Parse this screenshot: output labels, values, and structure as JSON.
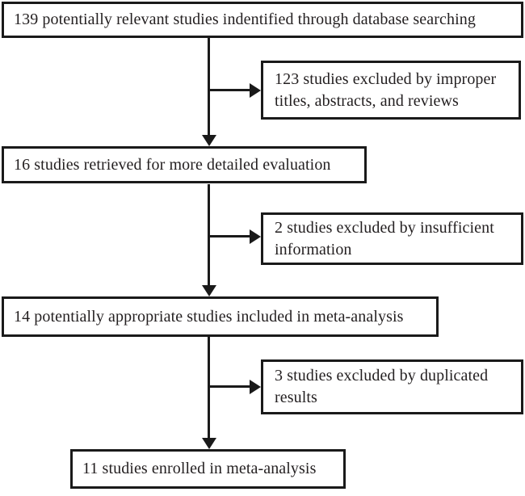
{
  "diagram": {
    "type": "flowchart",
    "nodes": {
      "identified": {
        "label": "139 potentially relevant studies indentified through database searching"
      },
      "excluded_titles": {
        "label": "123 studies excluded by improper titles, abstracts, and reviews"
      },
      "retrieved": {
        "label": "16 studies retrieved for more detailed evaluation"
      },
      "excluded_insufficient": {
        "label": "2 studies excluded by insufficient information"
      },
      "included": {
        "label": "14 potentially appropriate studies included in meta-analysis"
      },
      "excluded_duplicated": {
        "label": "3 studies excluded by duplicated results"
      },
      "enrolled": {
        "label": "11 studies enrolled in meta-analysis"
      }
    },
    "edges": [
      {
        "from": "identified",
        "to": "retrieved"
      },
      {
        "from": "identified",
        "to": "excluded_titles"
      },
      {
        "from": "retrieved",
        "to": "included"
      },
      {
        "from": "retrieved",
        "to": "excluded_insufficient"
      },
      {
        "from": "included",
        "to": "enrolled"
      },
      {
        "from": "included",
        "to": "excluded_duplicated"
      }
    ],
    "colors": {
      "ink": "#1a1a1a",
      "text": "#231f20",
      "bg": "#ffffff"
    }
  }
}
